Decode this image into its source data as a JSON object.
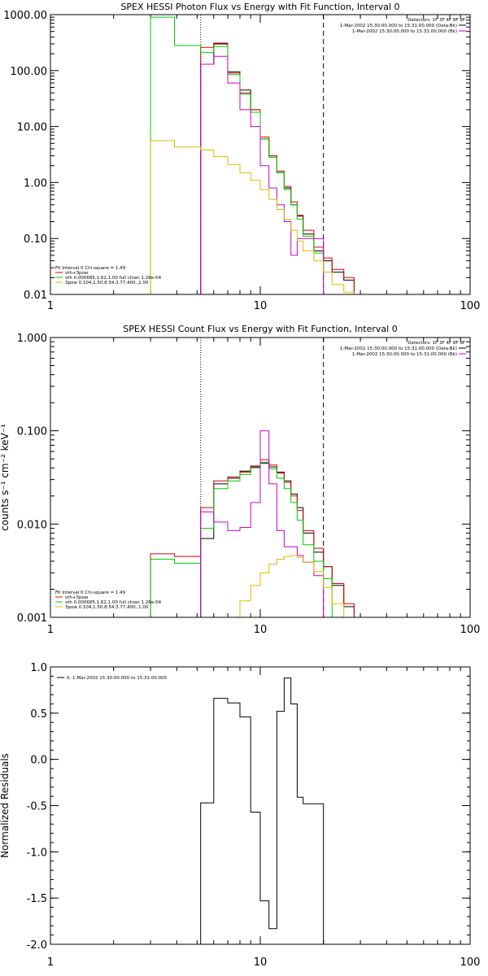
{
  "chart_data": [
    {
      "type": "line",
      "title": "SPEX HESSI Photon Flux vs Energy with Fit Function, Interval 0",
      "xscale": "log",
      "yscale": "log",
      "xlim": [
        1,
        100
      ],
      "ylim": [
        0.01,
        1000
      ],
      "xticks": [
        1,
        10,
        100
      ],
      "xtick_labels": [
        "1",
        "10",
        "100"
      ],
      "yticks": [
        0.01,
        0.1,
        1,
        10,
        100,
        1000
      ],
      "ytick_labels": [
        "0.01",
        "0.10",
        "1.00",
        "10.00",
        "100.00",
        "1000.00"
      ],
      "vlines": [
        {
          "x": 5.2,
          "style": "dotted"
        },
        {
          "x": 20,
          "style": "dashed"
        }
      ],
      "header_lines": [
        "Detectors: 1F 3F 4F 8F 9F",
        "1-Mar-2002 15:30:00.000 to 15:31:00.000 (Data-Bk)",
        "1-Mar-2002 15:30:00.000 to 15:31:00.000 (Bk)"
      ],
      "header_swatches": [
        "#000000",
        "#cc00cc"
      ],
      "legend_title": "Fit Interval  0    Chi-square = 1.49",
      "legend_entries": [
        {
          "label": "vth+3pow",
          "color": "#dd0000"
        },
        {
          "label": "vth 0.000685,1.62,1.00   full chian 1.26e-04",
          "color": "#00cc00"
        },
        {
          "label": "3pow 0.104,1.50,8.54,3.77,400.,1.00",
          "color": "#ddbb00"
        }
      ],
      "edges": [
        3.0,
        3.9,
        5.2,
        6.0,
        7.0,
        8.0,
        9.0,
        10.0,
        11.0,
        12.0,
        13.0,
        14.0,
        15.0,
        16.0,
        18.0,
        20.0,
        22.0,
        25.0,
        28.0
      ],
      "series": [
        {
          "color": "#000000",
          "values": [
            null,
            null,
            130,
            300,
            95,
            45,
            20,
            6,
            3,
            1.5,
            0.8,
            0.4,
            0.25,
            0.12,
            0.06,
            0.04,
            0.025,
            0.018,
            null
          ]
        },
        {
          "color": "#dd0000",
          "values": [
            null,
            null,
            260,
            310,
            90,
            40,
            20,
            6.5,
            3,
            1.6,
            0.85,
            0.45,
            0.26,
            0.14,
            0.07,
            0.045,
            0.028,
            0.02,
            null
          ]
        },
        {
          "color": "#00cc00",
          "values": [
            900,
            280,
            210,
            270,
            85,
            38,
            18,
            6,
            2.8,
            1.5,
            0.75,
            0.4,
            0.22,
            0.11,
            0.055,
            null,
            null,
            null,
            null
          ]
        },
        {
          "color": "#cc00cc",
          "values": [
            null,
            null,
            130,
            180,
            60,
            20,
            10,
            2,
            0.8,
            0.4,
            0.2,
            0.05,
            0.1,
            0.1,
            0.1,
            null,
            null,
            null,
            null
          ]
        },
        {
          "color": "#ddbb00",
          "values": [
            5.6,
            4.3,
            3.8,
            2.9,
            2.1,
            1.5,
            1.1,
            0.75,
            0.5,
            0.33,
            0.22,
            0.14,
            0.09,
            0.06,
            0.04,
            0.025,
            0.015,
            0.011,
            null
          ]
        }
      ]
    },
    {
      "type": "line",
      "title": "SPEX HESSI Count Flux vs Energy with Fit Function, Interval 0",
      "ylabel": "counts s⁻¹ cm⁻² keV⁻¹",
      "xscale": "log",
      "yscale": "log",
      "xlim": [
        1,
        100
      ],
      "ylim": [
        0.001,
        1
      ],
      "xticks": [
        1,
        10,
        100
      ],
      "xtick_labels": [
        "1",
        "10",
        "100"
      ],
      "yticks": [
        0.001,
        0.01,
        0.1,
        1
      ],
      "ytick_labels": [
        "0.001",
        "0.010",
        "0.100",
        "1.000"
      ],
      "vlines": [
        {
          "x": 5.2,
          "style": "dotted"
        },
        {
          "x": 20,
          "style": "dashed"
        }
      ],
      "header_lines": [
        "Detectors: 1F 3F 4F 8F 9F",
        "1-Mar-2002 15:30:00.000 to 15:31:00.000 (Data-Bk)",
        "1-Mar-2002 15:30:00.000 to 15:31:00.000 (Bk)"
      ],
      "header_swatches": [
        "#000000",
        "#cc00cc"
      ],
      "legend_title": "Fit Interval  0    Chi-square = 1.49",
      "legend_entries": [
        {
          "label": "vth+3pow",
          "color": "#dd0000"
        },
        {
          "label": "vth 0.000685,1.62,1.00   full chian 1.26e-04",
          "color": "#00cc00"
        },
        {
          "label": "3pow 0.104,1.50,8.54,3.77,400.,1.00",
          "color": "#ddbb00"
        }
      ],
      "edges": [
        3.0,
        3.9,
        5.2,
        6.0,
        7.0,
        8.0,
        9.0,
        10.0,
        11.0,
        12.0,
        13.0,
        14.0,
        15.0,
        16.0,
        18.0,
        20.0,
        22.0,
        25.0,
        28.0
      ],
      "series": [
        {
          "color": "#000000",
          "values": [
            null,
            null,
            0.007,
            0.027,
            0.031,
            0.037,
            0.041,
            0.045,
            0.041,
            0.036,
            0.029,
            0.021,
            0.015,
            0.008,
            0.005,
            0.0035,
            0.0022,
            0.0013,
            null
          ]
        },
        {
          "color": "#dd0000",
          "values": [
            0.0048,
            0.0045,
            0.015,
            0.029,
            0.032,
            0.036,
            0.042,
            0.049,
            0.043,
            0.035,
            0.028,
            0.02,
            0.014,
            0.0085,
            0.0055,
            0.0035,
            0.0023,
            0.0014,
            null
          ]
        },
        {
          "color": "#00cc00",
          "values": [
            0.0042,
            0.0038,
            0.009,
            0.024,
            0.029,
            0.034,
            0.04,
            0.046,
            0.039,
            0.031,
            0.024,
            0.017,
            0.011,
            0.006,
            0.004,
            0.0026,
            null,
            null,
            null
          ]
        },
        {
          "color": "#cc00cc",
          "values": [
            null,
            null,
            0.0135,
            0.0105,
            0.0085,
            0.0092,
            0.017,
            0.1,
            0.027,
            0.0085,
            0.0057,
            0.0057,
            0.0046,
            0.0039,
            0.0028,
            null,
            null,
            null,
            null
          ]
        },
        {
          "color": "#ddbb00",
          "values": [
            null,
            null,
            null,
            null,
            null,
            0.0015,
            0.0022,
            0.003,
            0.0037,
            0.0042,
            0.0045,
            0.0046,
            0.0044,
            0.0039,
            0.0031,
            0.0021,
            0.0014,
            0.001,
            null
          ]
        }
      ]
    },
    {
      "type": "line",
      "ylabel": "Normalized Residuals",
      "xscale": "log",
      "yscale": "linear",
      "xlim": [
        1,
        100
      ],
      "ylim": [
        -2,
        1
      ],
      "xticks": [
        1,
        10,
        100
      ],
      "xtick_labels": [
        "1",
        "10",
        "100"
      ],
      "yticks": [
        -2,
        -1.5,
        -1,
        -0.5,
        0,
        0.5,
        1
      ],
      "ytick_labels": [
        "-2.0",
        "-1.5",
        "-1.0",
        "-0.5",
        "0.0",
        "0.5",
        "1.0"
      ],
      "legend_entries": [
        {
          "label": "0.  1-Mar-2002 15:30:00.000 to 15:31:00.000",
          "color": "#000000"
        }
      ],
      "edges": [
        5.2,
        6.0,
        7.0,
        8.0,
        9.0,
        10.0,
        11.0,
        12.0,
        13.0,
        14.0,
        15.0,
        16.0,
        18.0,
        20.0
      ],
      "series": [
        {
          "color": "#000000",
          "values": [
            -0.47,
            0.66,
            0.61,
            0.46,
            -0.57,
            -1.53,
            -1.83,
            0.52,
            0.88,
            0.6,
            -0.41,
            -0.48,
            -0.48
          ]
        }
      ]
    }
  ]
}
